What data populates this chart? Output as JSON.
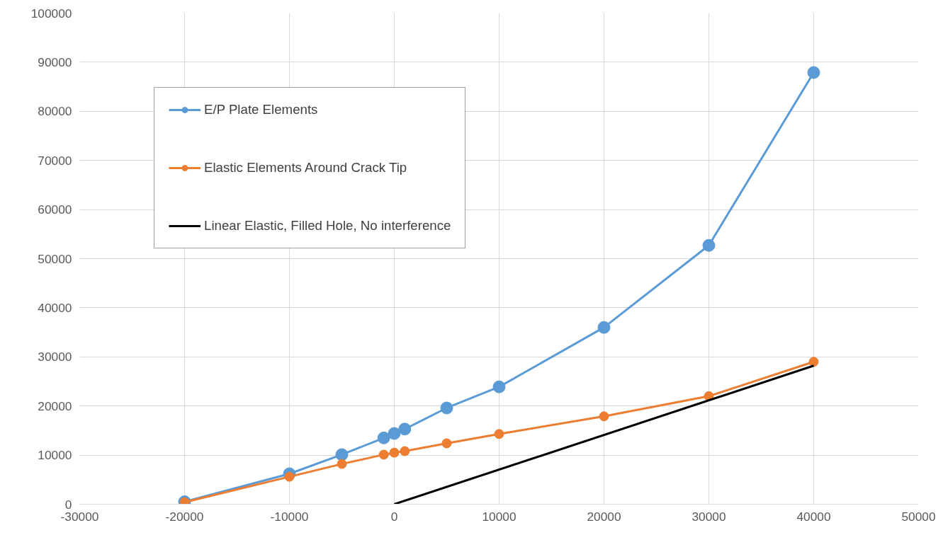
{
  "chart_data": {
    "type": "line",
    "xlim": [
      -30000,
      50000
    ],
    "ylim": [
      0,
      100000
    ],
    "xticks": [
      -30000,
      -20000,
      -10000,
      0,
      10000,
      20000,
      30000,
      40000,
      50000
    ],
    "yticks": [
      0,
      10000,
      20000,
      30000,
      40000,
      50000,
      60000,
      70000,
      80000,
      90000,
      100000
    ],
    "grid": true,
    "legend": "top left",
    "marker": "circle",
    "line_style": "solid",
    "series": [
      {
        "name": "E/P Plate Elements",
        "color": "#5b9bd5",
        "x": [
          -20000,
          -10000,
          -5000,
          -1000,
          0,
          1000,
          5000,
          10000,
          20000,
          30000,
          40000
        ],
        "values": [
          500,
          6200,
          10100,
          13500,
          14400,
          15300,
          19600,
          23900,
          36000,
          52700,
          87900
        ]
      },
      {
        "name": "Elastic Elements Around Crack Tip",
        "color": "#ed7d31",
        "x": [
          -20000,
          -10000,
          -5000,
          -1000,
          0,
          1000,
          5000,
          10000,
          20000,
          30000,
          40000
        ],
        "values": [
          400,
          5600,
          8200,
          10100,
          10500,
          10800,
          12400,
          14300,
          17900,
          22000,
          29000
        ]
      },
      {
        "name": "Linear Elastic, Filled Hole, No interference",
        "color": "#000000",
        "marker": "none",
        "x": [
          0,
          40000
        ],
        "values": [
          0,
          28200
        ]
      }
    ]
  }
}
